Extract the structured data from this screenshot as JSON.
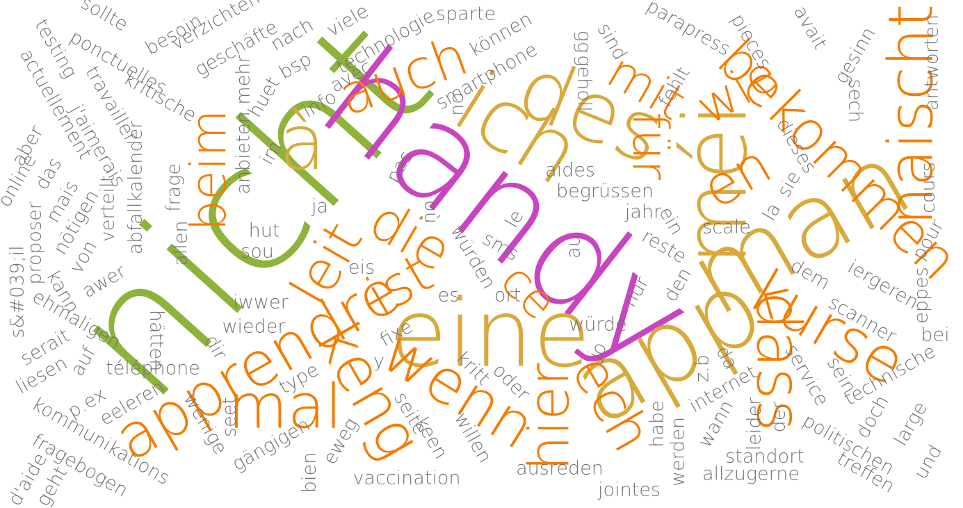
{
  "words": [
    {
      "text": "nicht",
      "color": "#8db33a"
    },
    {
      "text": "handy",
      "color": "#c944c0"
    },
    {
      "text": "app",
      "color": "#d8a93b"
    },
    {
      "text": "man",
      "color": "#d8a93b"
    },
    {
      "text": "eine",
      "color": "#d8a93b"
    },
    {
      "text": "ich",
      "color": "#d8a93b"
    },
    {
      "text": "des",
      "color": "#d8a93b"
    },
    {
      "text": "méi",
      "color": "#d8a93b"
    },
    {
      "text": "à",
      "color": "#d8a93b"
    },
    {
      "text": "apprendre",
      "color": "#f47c00"
    },
    {
      "text": "mal",
      "color": "#f47c00"
    },
    {
      "text": "keng",
      "color": "#f47c00"
    },
    {
      "text": "wenn",
      "color": "#f47c00"
    },
    {
      "text": "hier",
      "color": "#f47c00"
    },
    {
      "text": "ech",
      "color": "#f47c00"
    },
    {
      "text": "dass",
      "color": "#f47c00"
    },
    {
      "text": "kurse",
      "color": "#f47c00"
    },
    {
      "text": "naischt",
      "color": "#f47c00"
    },
    {
      "text": "bekommen",
      "color": "#f47c00"
    },
    {
      "text": "wie",
      "color": "#f47c00"
    },
    {
      "text": "mit",
      "color": "#f47c00"
    },
    {
      "text": "für",
      "color": "#f47c00"
    },
    {
      "text": "en",
      "color": "#f47c00"
    },
    {
      "text": "ist",
      "color": "#f47c00"
    },
    {
      "text": "die",
      "color": "#f47c00"
    },
    {
      "text": "leit",
      "color": "#f47c00"
    },
    {
      "text": "beim",
      "color": "#f47c00"
    },
    {
      "text": "auch",
      "color": "#f47c00"
    },
    {
      "text": "ce",
      "color": "#f47c00"
    },
    {
      "text": "sollte",
      "color": "#737373"
    },
    {
      "text": "besoin",
      "color": "#737373"
    },
    {
      "text": "verzichten",
      "color": "#737373"
    },
    {
      "text": "testing",
      "color": "#737373"
    },
    {
      "text": "ponctuelles",
      "color": "#737373"
    },
    {
      "text": "geschäfte",
      "color": "#737373"
    },
    {
      "text": "nach",
      "color": "#737373"
    },
    {
      "text": "viele",
      "color": "#737373"
    },
    {
      "text": "technologie",
      "color": "#737373"
    },
    {
      "text": "sparte",
      "color": "#737373"
    },
    {
      "text": "können",
      "color": "#737373"
    },
    {
      "text": "actuellement",
      "color": "#737373"
    },
    {
      "text": "travailler",
      "color": "#737373"
    },
    {
      "text": "kritische",
      "color": "#737373"
    },
    {
      "text": "mehr",
      "color": "#737373"
    },
    {
      "text": "bsp",
      "color": "#737373"
    },
    {
      "text": "avec",
      "color": "#737373"
    },
    {
      "text": "smartphone",
      "color": "#737373"
    },
    {
      "text": "gg",
      "color": "#737373"
    },
    {
      "text": "geholl",
      "color": "#737373"
    },
    {
      "text": "sind",
      "color": "#737373"
    },
    {
      "text": "parapress",
      "color": "#737373"
    },
    {
      "text": "pieces",
      "color": "#737373"
    },
    {
      "text": "avait",
      "color": "#737373"
    },
    {
      "text": "gesinn",
      "color": "#737373"
    },
    {
      "text": "antworten",
      "color": "#737373"
    },
    {
      "text": "j'aimerais",
      "color": "#737373"
    },
    {
      "text": "huet",
      "color": "#737373"
    },
    {
      "text": "info",
      "color": "#737373"
    },
    {
      "text": "ou",
      "color": "#737373"
    },
    {
      "text": "fehlt",
      "color": "#737373"
    },
    {
      "text": "sech",
      "color": "#737373"
    },
    {
      "text": "aber",
      "color": "#737373"
    },
    {
      "text": "abfallkalender",
      "color": "#737373"
    },
    {
      "text": "anbieten",
      "color": "#737373"
    },
    {
      "text": "im",
      "color": "#737373"
    },
    {
      "text": "dieses",
      "color": "#737373"
    },
    {
      "text": "online",
      "color": "#737373"
    },
    {
      "text": "das",
      "color": "#737373"
    },
    {
      "text": "mais",
      "color": "#737373"
    },
    {
      "text": "verteilt",
      "color": "#737373"
    },
    {
      "text": "frage",
      "color": "#737373"
    },
    {
      "text": "pas",
      "color": "#737373"
    },
    {
      "text": "aides",
      "color": "#737373"
    },
    {
      "text": "begrüssen",
      "color": "#737373"
    },
    {
      "text": "sie",
      "color": "#737373"
    },
    {
      "text": "cours",
      "color": "#737373"
    },
    {
      "text": "proposer",
      "color": "#737373"
    },
    {
      "text": "nötigen",
      "color": "#737373"
    },
    {
      "text": "allen",
      "color": "#737373"
    },
    {
      "text": "ja",
      "color": "#737373"
    },
    {
      "text": "où",
      "color": "#737373"
    },
    {
      "text": "würden",
      "color": "#737373"
    },
    {
      "text": "le",
      "color": "#737373"
    },
    {
      "text": "jahr",
      "color": "#737373"
    },
    {
      "text": "la",
      "color": "#737373"
    },
    {
      "text": "ein",
      "color": "#737373"
    },
    {
      "text": "scale",
      "color": "#737373"
    },
    {
      "text": "pour",
      "color": "#737373"
    },
    {
      "text": "von",
      "color": "#737373"
    },
    {
      "text": "hut",
      "color": "#737373"
    },
    {
      "text": "sou",
      "color": "#737373"
    },
    {
      "text": "sms",
      "color": "#737373"
    },
    {
      "text": "au",
      "color": "#737373"
    },
    {
      "text": "reste",
      "color": "#737373"
    },
    {
      "text": "awer",
      "color": "#737373"
    },
    {
      "text": "kann",
      "color": "#737373"
    },
    {
      "text": "eis",
      "color": "#737373"
    },
    {
      "text": "ort",
      "color": "#737373"
    },
    {
      "text": "nur",
      "color": "#737373"
    },
    {
      "text": "den",
      "color": "#737373"
    },
    {
      "text": "dem",
      "color": "#737373"
    },
    {
      "text": "iergeren",
      "color": "#737373"
    },
    {
      "text": "s&#039;il",
      "color": "#737373"
    },
    {
      "text": "ehmaligen",
      "color": "#737373"
    },
    {
      "text": "iwwer",
      "color": "#737373"
    },
    {
      "text": "es",
      "color": "#737373"
    },
    {
      "text": "scanner",
      "color": "#737373"
    },
    {
      "text": "eppes",
      "color": "#737373"
    },
    {
      "text": "hätten",
      "color": "#737373"
    },
    {
      "text": "wieder",
      "color": "#737373"
    },
    {
      "text": "fixe",
      "color": "#737373"
    },
    {
      "text": "würde",
      "color": "#737373"
    },
    {
      "text": "bei",
      "color": "#737373"
    },
    {
      "text": "serait",
      "color": "#737373"
    },
    {
      "text": "auf",
      "color": "#737373"
    },
    {
      "text": "dir",
      "color": "#737373"
    },
    {
      "text": "y",
      "color": "#737373"
    },
    {
      "text": "jo",
      "color": "#737373"
    },
    {
      "text": "liesen",
      "color": "#737373"
    },
    {
      "text": "téléphone",
      "color": "#737373"
    },
    {
      "text": "type",
      "color": "#737373"
    },
    {
      "text": "kritt",
      "color": "#737373"
    },
    {
      "text": "z.b",
      "color": "#737373"
    },
    {
      "text": "da",
      "color": "#737373"
    },
    {
      "text": "internet",
      "color": "#737373"
    },
    {
      "text": "service",
      "color": "#737373"
    },
    {
      "text": "sein",
      "color": "#737373"
    },
    {
      "text": "technische",
      "color": "#737373"
    },
    {
      "text": "p.ex",
      "color": "#737373"
    },
    {
      "text": "eeleren",
      "color": "#737373"
    },
    {
      "text": "oder",
      "color": "#737373"
    },
    {
      "text": "kommunikations",
      "color": "#737373"
    },
    {
      "text": "wenige",
      "color": "#737373"
    },
    {
      "text": "seet",
      "color": "#737373"
    },
    {
      "text": "seite",
      "color": "#737373"
    },
    {
      "text": "eweg",
      "color": "#737373"
    },
    {
      "text": "keen",
      "color": "#737373"
    },
    {
      "text": "willen",
      "color": "#737373"
    },
    {
      "text": "habe",
      "color": "#737373"
    },
    {
      "text": "wann",
      "color": "#737373"
    },
    {
      "text": "leider",
      "color": "#737373"
    },
    {
      "text": "der",
      "color": "#737373"
    },
    {
      "text": "doch",
      "color": "#737373"
    },
    {
      "text": "large",
      "color": "#737373"
    },
    {
      "text": "fragebogen",
      "color": "#737373"
    },
    {
      "text": "gängigen",
      "color": "#737373"
    },
    {
      "text": "werden",
      "color": "#737373"
    },
    {
      "text": "politischen",
      "color": "#737373"
    },
    {
      "text": "standort",
      "color": "#737373"
    },
    {
      "text": "treffen",
      "color": "#737373"
    },
    {
      "text": "und",
      "color": "#737373"
    },
    {
      "text": "d'aide",
      "color": "#737373"
    },
    {
      "text": "geht",
      "color": "#737373"
    },
    {
      "text": "bien",
      "color": "#737373"
    },
    {
      "text": "vaccination",
      "color": "#737373"
    },
    {
      "text": "ausreden",
      "color": "#737373"
    },
    {
      "text": "allzugerne",
      "color": "#737373"
    },
    {
      "text": "jointes",
      "color": "#737373"
    }
  ]
}
